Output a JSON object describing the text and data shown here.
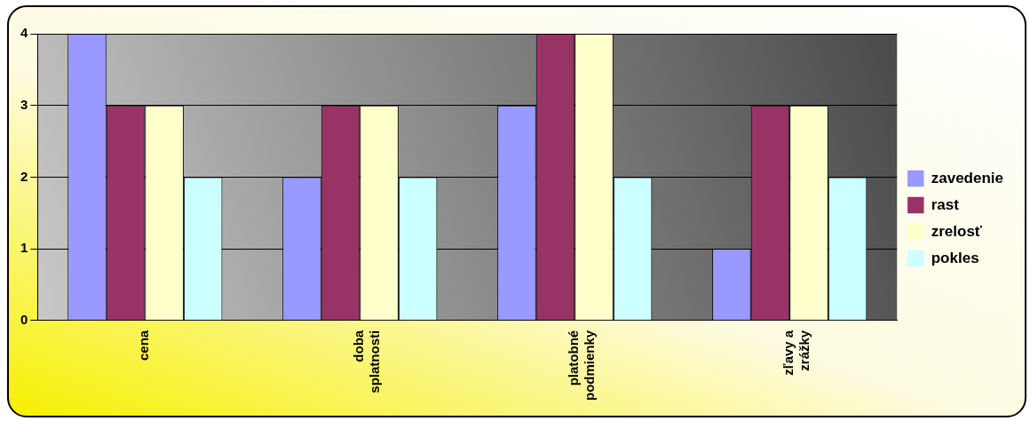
{
  "chart_data": {
    "type": "bar",
    "categories": [
      "cena",
      "doba splatnosti",
      "platobné podmienky",
      "zľavy a zrážky"
    ],
    "series": [
      {
        "name": "zavedenie",
        "color": "#9999ff",
        "values": [
          4,
          2,
          3,
          1
        ]
      },
      {
        "name": "rast",
        "color": "#993366",
        "values": [
          3,
          3,
          4,
          3
        ]
      },
      {
        "name": "zrelosť",
        "color": "#ffffcc",
        "values": [
          3,
          3,
          4,
          3
        ]
      },
      {
        "name": "pokles",
        "color": "#ccffff",
        "values": [
          2,
          2,
          2,
          2
        ]
      }
    ],
    "ylim": [
      0,
      4
    ],
    "yticks": [
      0,
      1,
      2,
      3,
      4
    ],
    "grid": "y",
    "legend": "right"
  }
}
